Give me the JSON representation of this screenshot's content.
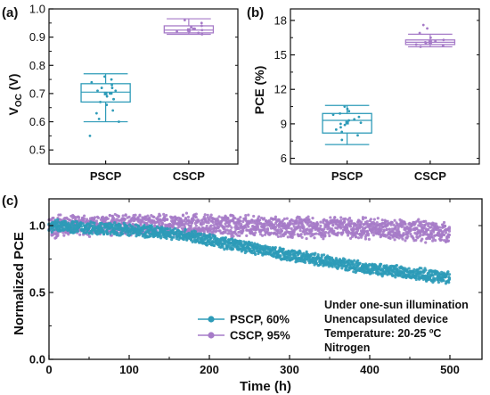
{
  "panels": {
    "a": {
      "label": "(a)"
    },
    "b": {
      "label": "(b)"
    },
    "c": {
      "label": "(c)"
    }
  },
  "colors": {
    "pscp": "#2e9bb8",
    "cscp": "#a67bc8",
    "axis": "#111111"
  },
  "chart_data": [
    {
      "id": "a",
      "type": "box",
      "ylabel": "V",
      "ylabel_sub": "OC",
      "ylabel_unit": "(V)",
      "categories": [
        "PSCP",
        "CSCP"
      ],
      "ylim": [
        0.45,
        1.0
      ],
      "yticks": [
        0.5,
        0.6,
        0.7,
        0.8,
        0.9,
        1.0
      ],
      "ytick_labels": [
        "0.5",
        "0.6",
        "0.7",
        "0.8",
        "0.9",
        "1.0"
      ],
      "boxes": [
        {
          "name": "PSCP",
          "whisker_low": 0.6,
          "q1": 0.67,
          "median": 0.705,
          "mean": 0.7,
          "q3": 0.735,
          "whisker_high": 0.77,
          "points": [
            0.55,
            0.6,
            0.61,
            0.63,
            0.64,
            0.66,
            0.67,
            0.68,
            0.68,
            0.69,
            0.7,
            0.7,
            0.71,
            0.71,
            0.72,
            0.72,
            0.73,
            0.74,
            0.75,
            0.76
          ]
        },
        {
          "name": "CSCP",
          "whisker_low": 0.91,
          "q1": 0.915,
          "median": 0.925,
          "mean": 0.925,
          "q3": 0.94,
          "whisker_high": 0.965,
          "points": [
            0.91,
            0.915,
            0.92,
            0.92,
            0.925,
            0.93,
            0.93,
            0.935,
            0.94,
            0.95,
            0.96
          ]
        }
      ]
    },
    {
      "id": "b",
      "type": "box",
      "ylabel": "PCE (%)",
      "categories": [
        "PSCP",
        "CSCP"
      ],
      "ylim": [
        5.5,
        19.0
      ],
      "yticks": [
        6,
        9,
        12,
        15,
        18
      ],
      "ytick_labels": [
        "6",
        "9",
        "12",
        "15",
        "18"
      ],
      "boxes": [
        {
          "name": "PSCP",
          "whisker_low": 7.2,
          "q1": 8.2,
          "median": 9.3,
          "mean": 9.1,
          "q3": 9.9,
          "whisker_high": 10.6,
          "points": [
            7.6,
            8.0,
            8.3,
            8.5,
            8.7,
            8.9,
            9.0,
            9.1,
            9.3,
            9.4,
            9.6,
            9.8,
            9.9,
            10.1,
            10.3,
            10.5
          ]
        },
        {
          "name": "CSCP",
          "whisker_low": 15.7,
          "q1": 15.9,
          "median": 16.1,
          "mean": 16.1,
          "q3": 16.3,
          "whisker_high": 16.8,
          "points": [
            15.7,
            15.8,
            15.9,
            16.0,
            16.1,
            16.2,
            16.3,
            16.5,
            16.9,
            17.3,
            17.6
          ]
        }
      ]
    },
    {
      "id": "c",
      "type": "scatter",
      "xlabel": "Time (h)",
      "ylabel": "Normalized PCE",
      "xlim": [
        0,
        540
      ],
      "ylim": [
        0,
        1.2
      ],
      "xticks": [
        0,
        100,
        200,
        300,
        400,
        500
      ],
      "xtick_labels": [
        "0",
        "100",
        "200",
        "300",
        "400",
        "500"
      ],
      "yticks": [
        0.0,
        0.5,
        1.0
      ],
      "ytick_labels": [
        "0.0",
        "0.5",
        "1.0"
      ],
      "legend_position": "lower-left",
      "series": [
        {
          "name": "PSCP, 60%",
          "trend": [
            [
              0,
              1.0
            ],
            [
              100,
              0.97
            ],
            [
              170,
              0.93
            ],
            [
              200,
              0.89
            ],
            [
              300,
              0.78
            ],
            [
              400,
              0.68
            ],
            [
              500,
              0.61
            ]
          ],
          "spread": 0.05
        },
        {
          "name": "CSCP, 95%",
          "trend": [
            [
              0,
              0.99
            ],
            [
              100,
              1.01
            ],
            [
              200,
              1.0
            ],
            [
              300,
              0.99
            ],
            [
              400,
              0.98
            ],
            [
              500,
              0.95
            ]
          ],
          "spread": 0.09
        }
      ],
      "annotation": [
        "Under one-sun illumination",
        "Unencapsulated device",
        "Temperature: 20-25 ºC",
        "Nitrogen"
      ]
    }
  ]
}
